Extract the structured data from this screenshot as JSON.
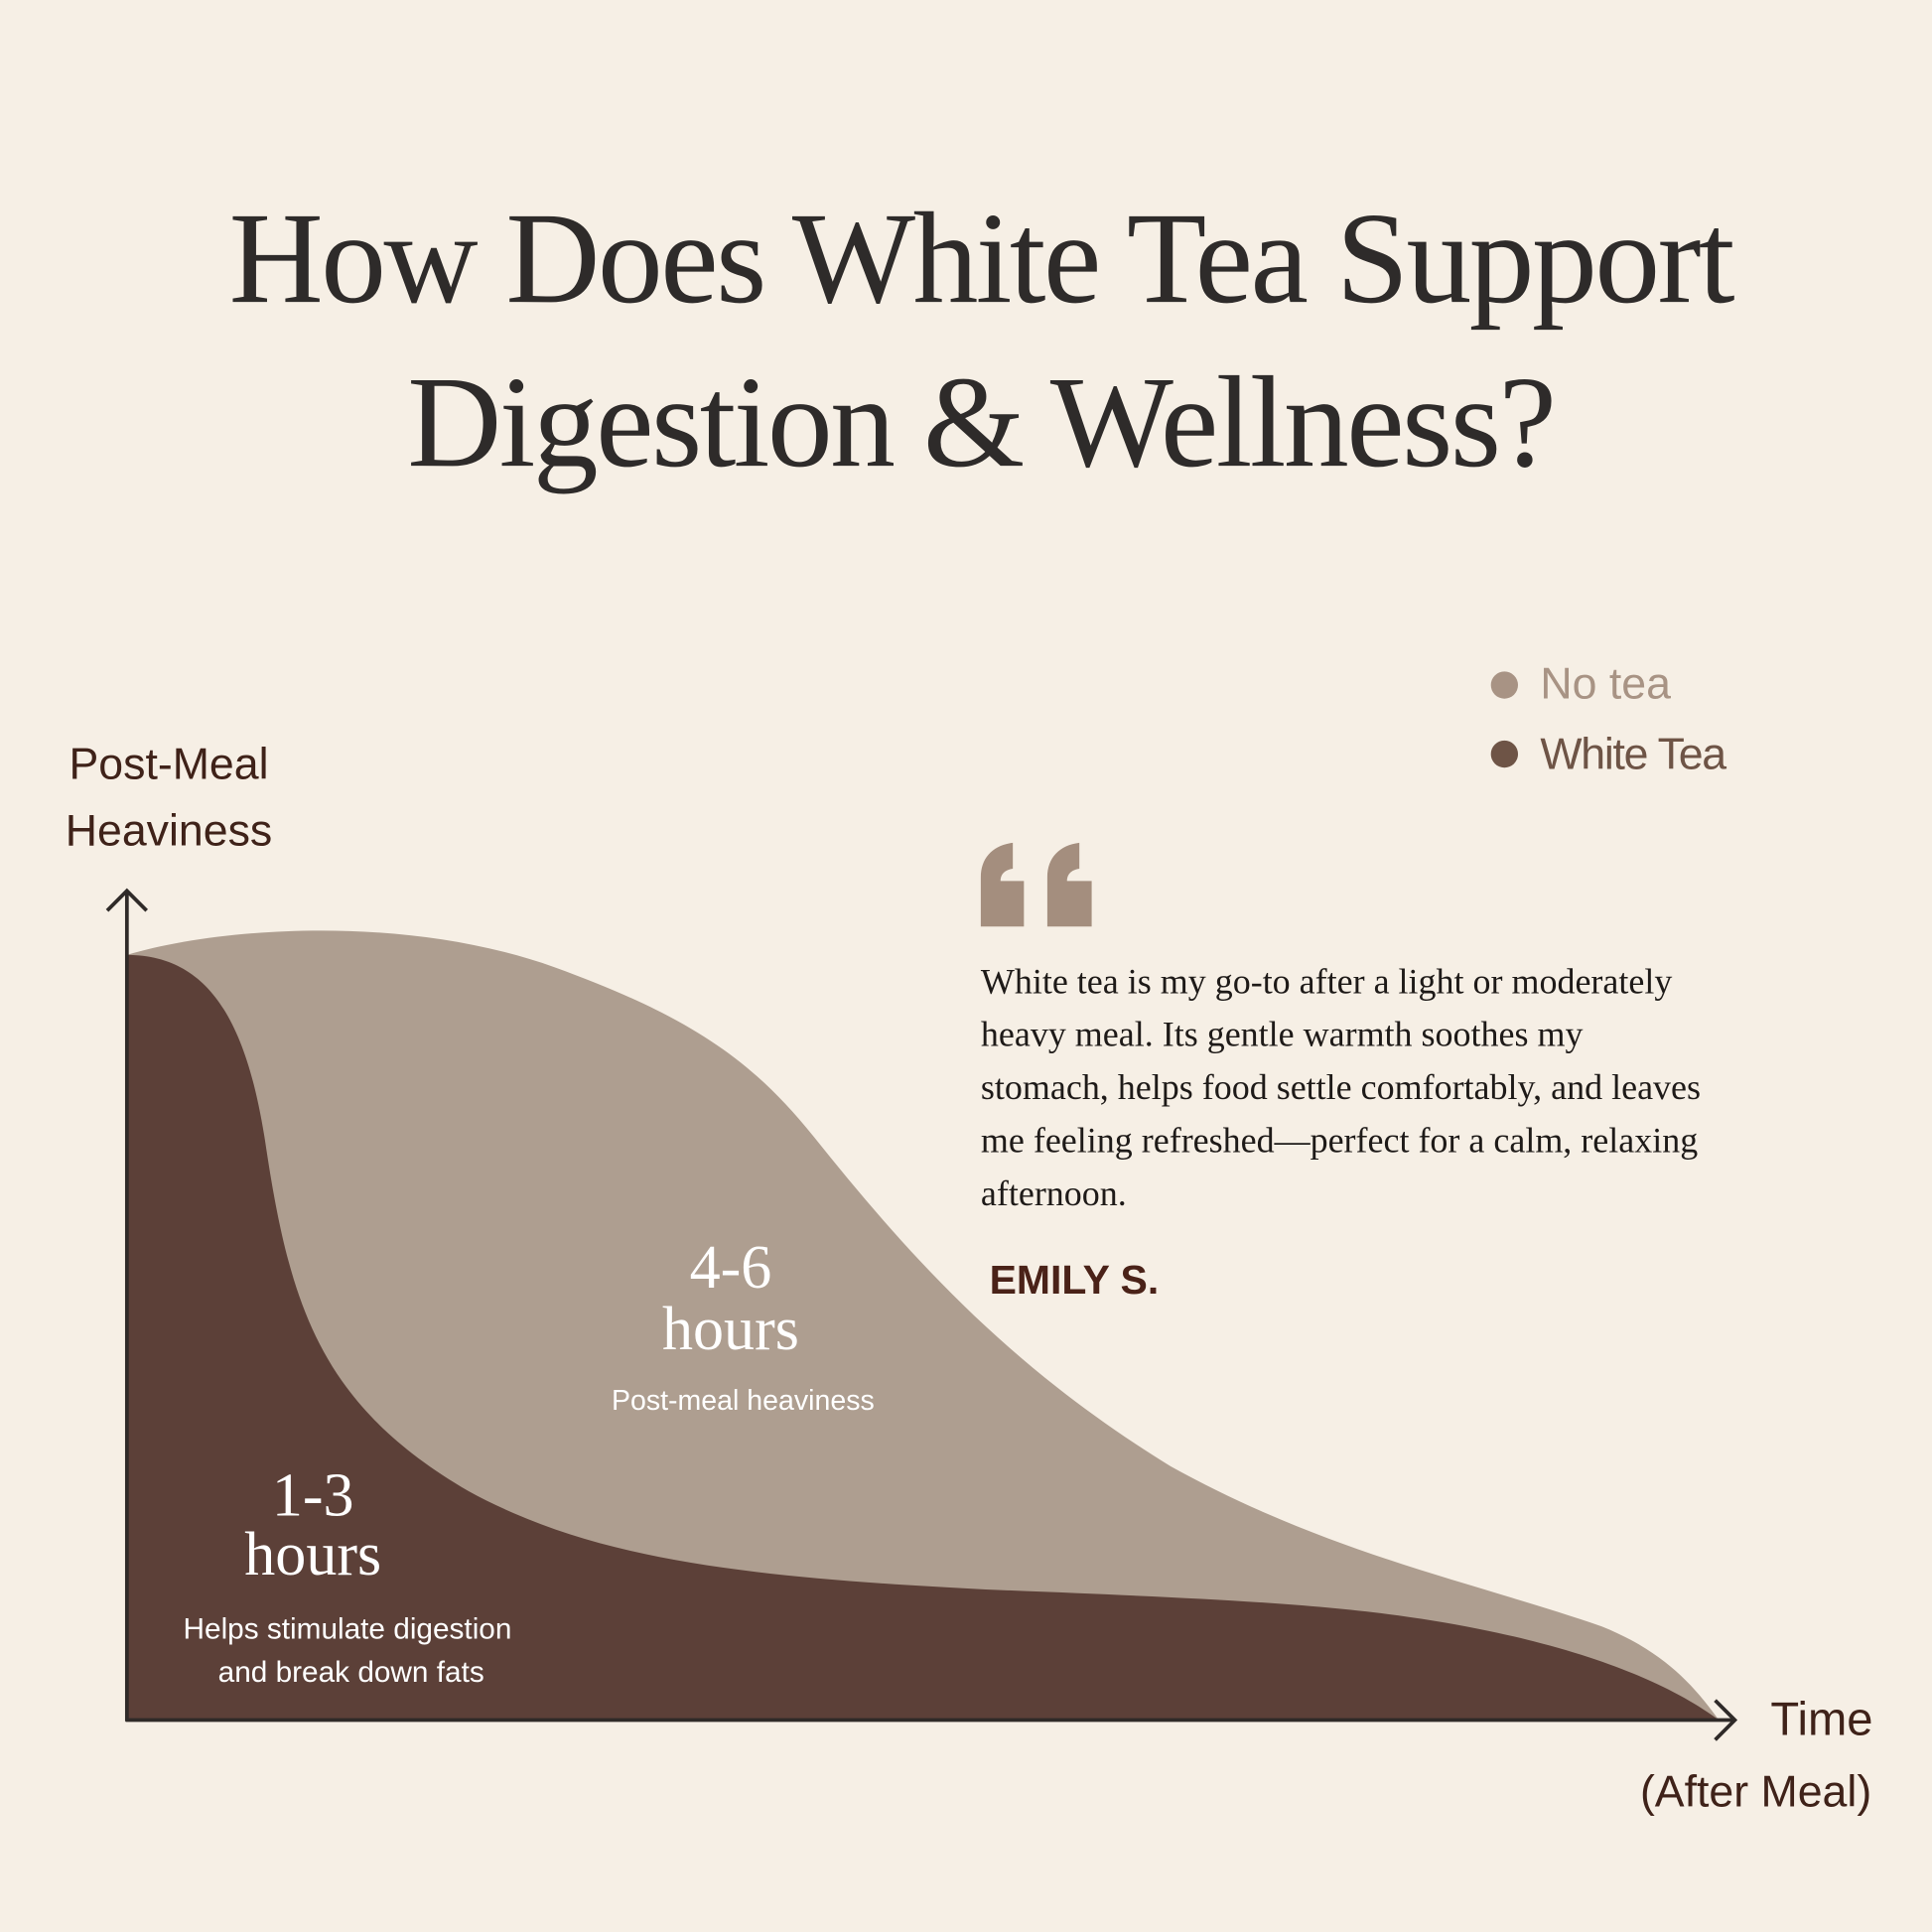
{
  "title": {
    "line1": "How Does White Tea Support",
    "line2": "Digestion & Wellness?"
  },
  "colors": {
    "background": "#f6efe5",
    "no_tea": "#ae9e90",
    "white_tea": "#5c4038",
    "legend_no_tea": "#a89384",
    "legend_white_tea": "#6e5446",
    "axis": "#2f2a28",
    "axis_label": "#3f2219",
    "quote_mark": "#a48e7e",
    "author": "#4a2218"
  },
  "chart_data": {
    "type": "area",
    "title": "",
    "ylabel_lines": [
      "Post-Meal",
      "Heaviness"
    ],
    "xlabel_lines": [
      "Time",
      "(After Meal)"
    ],
    "legend": {
      "placement": "top-right",
      "entries": [
        "No tea",
        "White Tea"
      ]
    },
    "grid": false,
    "ticks": false,
    "series": [
      {
        "name": "No tea",
        "duration": "4-6 hours",
        "label_value": "4-6",
        "label_unit": "hours",
        "caption": "Post-meal heaviness"
      },
      {
        "name": "White Tea",
        "duration": "1-3 hours",
        "label_value": "1-3",
        "label_unit": "hours",
        "caption_lines": [
          "Helps stimulate digestion",
          "and break down fats"
        ]
      }
    ]
  },
  "testimonial": {
    "quote_icon": "quote-open-icon",
    "lines": [
      "White tea is my go-to after a light or moderately",
      "heavy meal. Its gentle warmth soothes my",
      "stomach, helps food settle comfortably, and leaves",
      "me feeling refreshed—perfect for a calm, relaxing",
      "afternoon."
    ],
    "author": "EMILY S."
  }
}
